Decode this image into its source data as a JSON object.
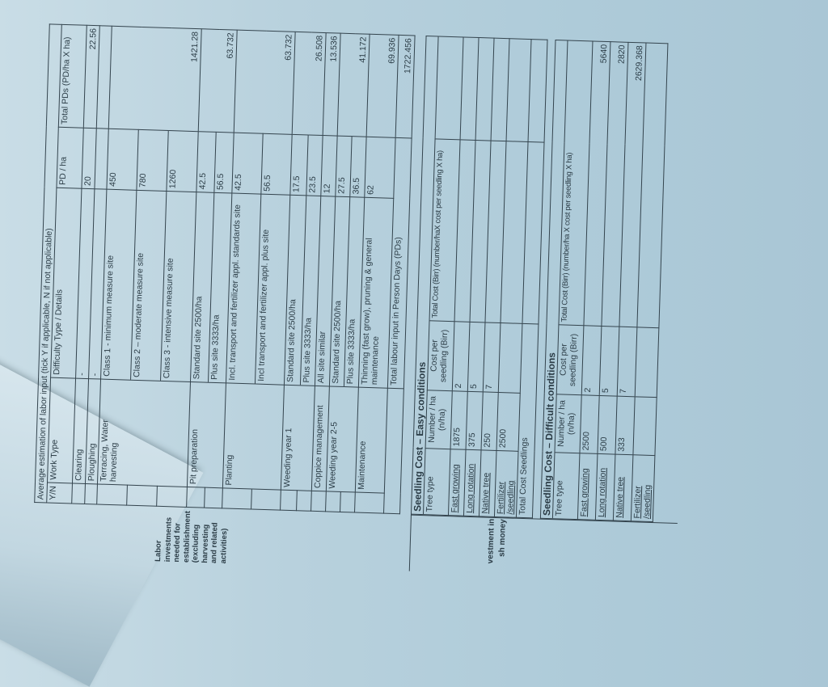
{
  "side_labels": {
    "labor": "Labor investments needed for establishment (excluding harvesting and related activities)",
    "cash": "vestment in sh money"
  },
  "labor": {
    "title": "Average estimation of labor input (tick Y if applicable, N if not applicable)",
    "headers": [
      "Y/N",
      "Work Type",
      "Difficulty Type / Details",
      "PD / ha",
      "Total PDs (PD/ha X ha)"
    ],
    "rows": [
      {
        "work_type": "Clearing",
        "details": "-",
        "pd_ha": "20",
        "total": "22.56",
        "h": 16
      },
      {
        "work_type": "Ploughing",
        "details": "-",
        "pd_ha": "",
        "total": "",
        "h": 14
      },
      {
        "work_type": "Terracing, Water harvesting",
        "details": "Class 1 - minimum measure site",
        "pd_ha": "450",
        "total": "",
        "h": 37
      },
      {
        "work_type": "",
        "details": "Class 2 – moderate measure site",
        "pd_ha": "780",
        "total": "",
        "h": 37,
        "cont": true
      },
      {
        "work_type": "",
        "details": "Class 3 - intensive measure site",
        "pd_ha": "1260",
        "total": "1421.28",
        "h": 37,
        "cont": true
      },
      {
        "work_type": "Pit preparation",
        "details": "Standard site 2500/ha",
        "pd_ha": "42.5",
        "total": "",
        "h": 22
      },
      {
        "work_type": "",
        "details": "Plus site 3333/ha",
        "pd_ha": "56.5",
        "total": "63.732",
        "h": 22,
        "cont": true
      },
      {
        "work_type": "Planting",
        "details": "Incl. transport and fertilizer appl. standards site",
        "pd_ha": "42.5",
        "total": "",
        "h": 36
      },
      {
        "work_type": "",
        "details": "Incl transport and fertilizer appl. plus site",
        "pd_ha": "56.5",
        "total": "63.732",
        "h": 36,
        "cont": true
      },
      {
        "work_type": "Weeding year 1",
        "details": "Standard site 2500/ha",
        "pd_ha": "17.5",
        "total": "",
        "h": 20
      },
      {
        "work_type": "",
        "details": "Plus site 3333/ha",
        "pd_ha": "23.5",
        "total": "26.508",
        "h": 18,
        "cont": true
      },
      {
        "work_type": "Coppice management",
        "details": "All site similar",
        "pd_ha": "12",
        "total": "13.536",
        "h": 18
      },
      {
        "work_type": "Weeding year 2-5",
        "details": "Standard site 2500/ha",
        "pd_ha": "27.5",
        "total": "",
        "h": 18
      },
      {
        "work_type": "",
        "details": "Plus site 3333/ha",
        "pd_ha": "36.5",
        "total": "41.172",
        "h": 18,
        "cont": true
      },
      {
        "work_type": "Maintenance",
        "details": "Thinning (fast grow), pruning & general maintenance",
        "pd_ha": "62",
        "total": "69.936",
        "h": 36
      }
    ],
    "total_label": "Total labour input in Person Days (PDs)",
    "total_value": "1722.456"
  },
  "easy": {
    "title": "Seedling Cost – Easy conditions",
    "headers": [
      "Tree type",
      "Number / ha (n/ha)",
      "Cost per seedling (Birr)",
      "Total Cost (Birr) (number/haX cost per seedling X ha)"
    ],
    "rows": [
      {
        "type": "Fast growing",
        "number": "1875",
        "cost": "2",
        "total": ""
      },
      {
        "type": "Long rotation",
        "number": "375",
        "cost": "5",
        "total": ""
      },
      {
        "type": "Native tree",
        "number": "250",
        "cost": "7",
        "total": ""
      },
      {
        "type": "Fertilizer /seedling",
        "number": "2500",
        "cost": "",
        "total": ""
      }
    ],
    "total_label": "Total Cost Seedlings"
  },
  "difficult": {
    "title": "Seedling Cost – Difficult conditions",
    "headers": [
      "Tree type",
      "Number / ha (n/ha)",
      "Cost per seedling (Birr)",
      "Total Cost (Birr) (number/ha X cost per seedling X ha)"
    ],
    "rows": [
      {
        "type": "Fast growing",
        "number": "2500",
        "cost": "2",
        "total": "5640"
      },
      {
        "type": "Long rotation",
        "number": "500",
        "cost": "5",
        "total": "2820"
      },
      {
        "type": "Native tree",
        "number": "333",
        "cost": "7",
        "total": "2629.368"
      },
      {
        "type": "Fertilizer /seedling",
        "number": "",
        "cost": "",
        "total": ""
      }
    ]
  }
}
